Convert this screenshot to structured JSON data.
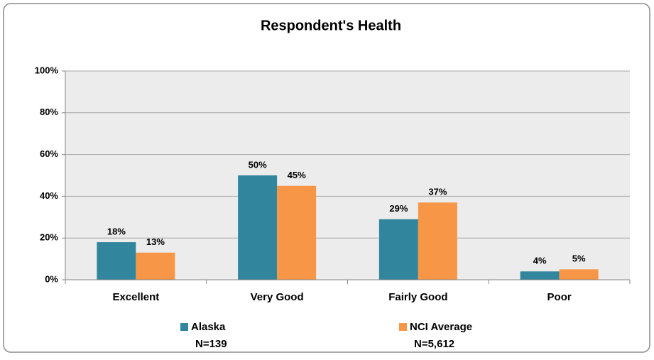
{
  "chart_data": {
    "type": "bar",
    "title": "Respondent's Health",
    "categories": [
      "Excellent",
      "Very Good",
      "Fairly Good",
      "Poor"
    ],
    "series": [
      {
        "name": "Alaska",
        "n_label": "N=139",
        "color": "#31859c",
        "values": [
          18,
          50,
          29,
          4
        ],
        "value_labels": [
          "18%",
          "50%",
          "29%",
          "4%"
        ]
      },
      {
        "name": "NCI Average",
        "n_label": "N=5,612",
        "color": "#f79646",
        "values": [
          13,
          45,
          37,
          5
        ],
        "value_labels": [
          "13%",
          "45%",
          "37%",
          "5%"
        ]
      }
    ],
    "ylim": [
      0,
      100
    ],
    "yticks": [
      {
        "value": 0,
        "label": "0%"
      },
      {
        "value": 20,
        "label": "20%"
      },
      {
        "value": 40,
        "label": "40%"
      },
      {
        "value": 60,
        "label": "60%"
      },
      {
        "value": 80,
        "label": "80%"
      },
      {
        "value": 100,
        "label": "100%"
      }
    ],
    "grid": true,
    "legend": "bottom"
  }
}
